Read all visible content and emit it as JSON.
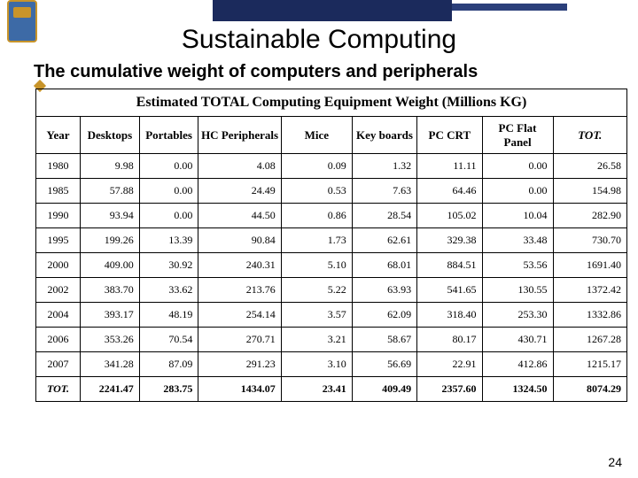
{
  "page_number": "24",
  "slide_title": "Sustainable Computing",
  "subtitle": "The cumulative weight of computers and peripherals",
  "table": {
    "title": "Estimated TOTAL Computing Equipment Weight (Millions KG)",
    "columns": [
      "Year",
      "Desktops",
      "Portables",
      "HC Peripherals",
      "Mice",
      "Key boards",
      "PC CRT",
      "PC Flat Panel",
      "TOT."
    ],
    "rows": [
      [
        "1980",
        "9.98",
        "0.00",
        "4.08",
        "0.09",
        "1.32",
        "11.11",
        "0.00",
        "26.58"
      ],
      [
        "1985",
        "57.88",
        "0.00",
        "24.49",
        "0.53",
        "7.63",
        "64.46",
        "0.00",
        "154.98"
      ],
      [
        "1990",
        "93.94",
        "0.00",
        "44.50",
        "0.86",
        "28.54",
        "105.02",
        "10.04",
        "282.90"
      ],
      [
        "1995",
        "199.26",
        "13.39",
        "90.84",
        "1.73",
        "62.61",
        "329.38",
        "33.48",
        "730.70"
      ],
      [
        "2000",
        "409.00",
        "30.92",
        "240.31",
        "5.10",
        "68.01",
        "884.51",
        "53.56",
        "1691.40"
      ],
      [
        "2002",
        "383.70",
        "33.62",
        "213.76",
        "5.22",
        "63.93",
        "541.65",
        "130.55",
        "1372.42"
      ],
      [
        "2004",
        "393.17",
        "48.19",
        "254.14",
        "3.57",
        "62.09",
        "318.40",
        "253.30",
        "1332.86"
      ],
      [
        "2006",
        "353.26",
        "70.54",
        "270.71",
        "3.21",
        "58.67",
        "80.17",
        "430.71",
        "1267.28"
      ],
      [
        "2007",
        "341.28",
        "87.09",
        "291.23",
        "3.10",
        "56.69",
        "22.91",
        "412.86",
        "1215.17"
      ],
      [
        "TOT.",
        "2241.47",
        "283.75",
        "1434.07",
        "23.41",
        "409.49",
        "2357.60",
        "1324.50",
        "8074.29"
      ]
    ]
  },
  "style": {
    "header_bar_color": "#1b2a5c",
    "accent_color": "#c8942a",
    "background_color": "#ffffff",
    "border_color": "#000000",
    "title_fontsize": 30,
    "subtitle_fontsize": 20,
    "table_title_fontsize": 16,
    "cell_fontsize": 12
  }
}
